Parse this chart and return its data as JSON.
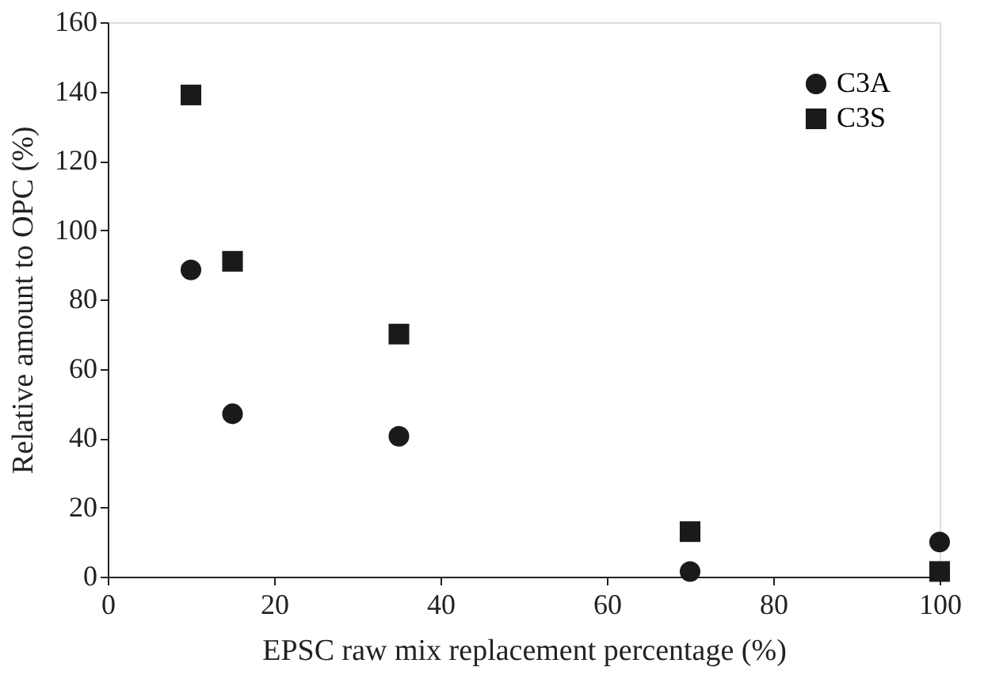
{
  "chart_data": {
    "type": "scatter",
    "xlabel": "EPSC raw mix replacement percentage (%)",
    "ylabel": "Relative amount to OPC (%)",
    "x": [
      10,
      15,
      35,
      70,
      100
    ],
    "series": [
      {
        "name": "C3A",
        "color": "#1a1a1a",
        "marker": "circle",
        "values": [
          88.5,
          47,
          40.5,
          1.5,
          10
        ]
      },
      {
        "name": "C3S",
        "color": "#1a1a1a",
        "marker": "square",
        "values": [
          139,
          91,
          70,
          13,
          1.5
        ]
      }
    ],
    "xlim": [
      0,
      100
    ],
    "xticks": [
      0,
      20,
      40,
      60,
      80,
      100
    ],
    "ylim": [
      0,
      160
    ],
    "yticks": [
      0,
      20,
      40,
      60,
      80,
      100,
      120,
      140,
      160
    ],
    "grid": false,
    "legend": "top right"
  }
}
